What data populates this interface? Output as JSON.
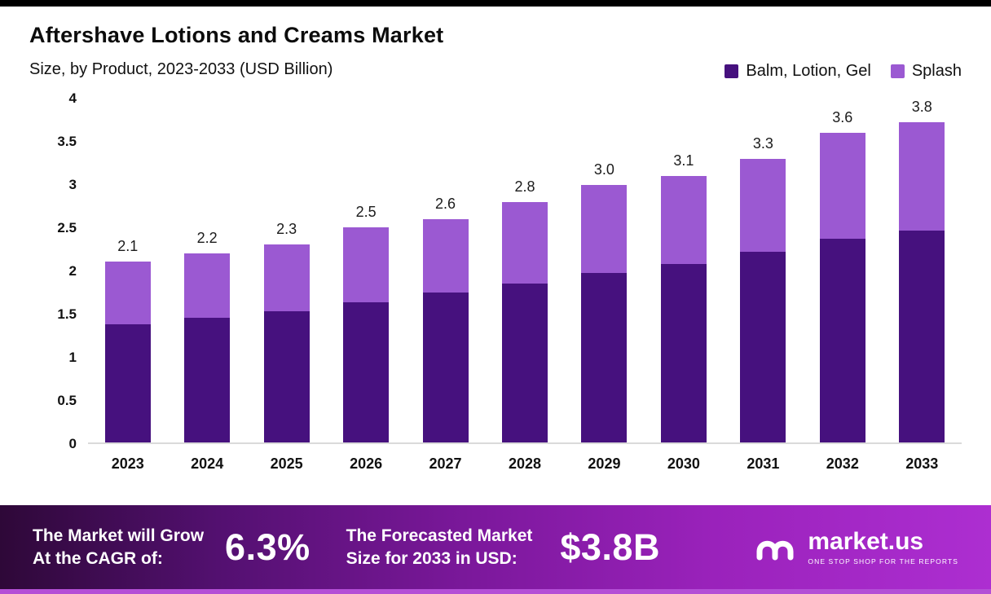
{
  "chart_data": {
    "type": "bar",
    "stacked": true,
    "title": "Aftershave Lotions and Creams Market",
    "subtitle": "Size, by Product, 2023-2033 (USD Billion)",
    "categories": [
      "2023",
      "2024",
      "2025",
      "2026",
      "2027",
      "2028",
      "2029",
      "2030",
      "2031",
      "2032",
      "2033"
    ],
    "series": [
      {
        "name": "Balm, Lotion, Gel",
        "color": "#46117e",
        "values": [
          1.37,
          1.45,
          1.53,
          1.63,
          1.74,
          1.85,
          1.97,
          2.08,
          2.22,
          2.37,
          2.51
        ]
      },
      {
        "name": "Splash",
        "color": "#9b59d2",
        "values": [
          0.73,
          0.75,
          0.77,
          0.87,
          0.86,
          0.95,
          1.03,
          1.02,
          1.08,
          1.23,
          1.29
        ]
      }
    ],
    "totals": [
      "2.1",
      "2.2",
      "2.3",
      "2.5",
      "2.6",
      "2.8",
      "3.0",
      "3.1",
      "3.3",
      "3.6",
      "3.8"
    ],
    "xlabel": "",
    "ylabel": "",
    "ylim": [
      0,
      4
    ],
    "yticks": [
      "4",
      "3.5",
      "3",
      "2.5",
      "2",
      "1.5",
      "1",
      "0.5",
      "0"
    ],
    "grid": false,
    "legend_position": "top-right"
  },
  "banner": {
    "cagr_label_line1": "The Market will Grow",
    "cagr_label_line2": "At the CAGR of:",
    "cagr_value": "6.3%",
    "forecast_label_line1": "The Forecasted Market",
    "forecast_label_line2": "Size for 2033 in USD:",
    "forecast_value": "$3.8B",
    "brand_name": "market.us",
    "brand_tagline": "ONE STOP SHOP FOR THE REPORTS"
  },
  "theme": {
    "top_bar_color": "#000000",
    "balm_color": "#46117e",
    "splash_color": "#9b59d2",
    "banner_gradient_start": "#2e0838",
    "banner_gradient_end": "#ad2ed1",
    "banner_bottom_strip": "#b44fd6"
  }
}
